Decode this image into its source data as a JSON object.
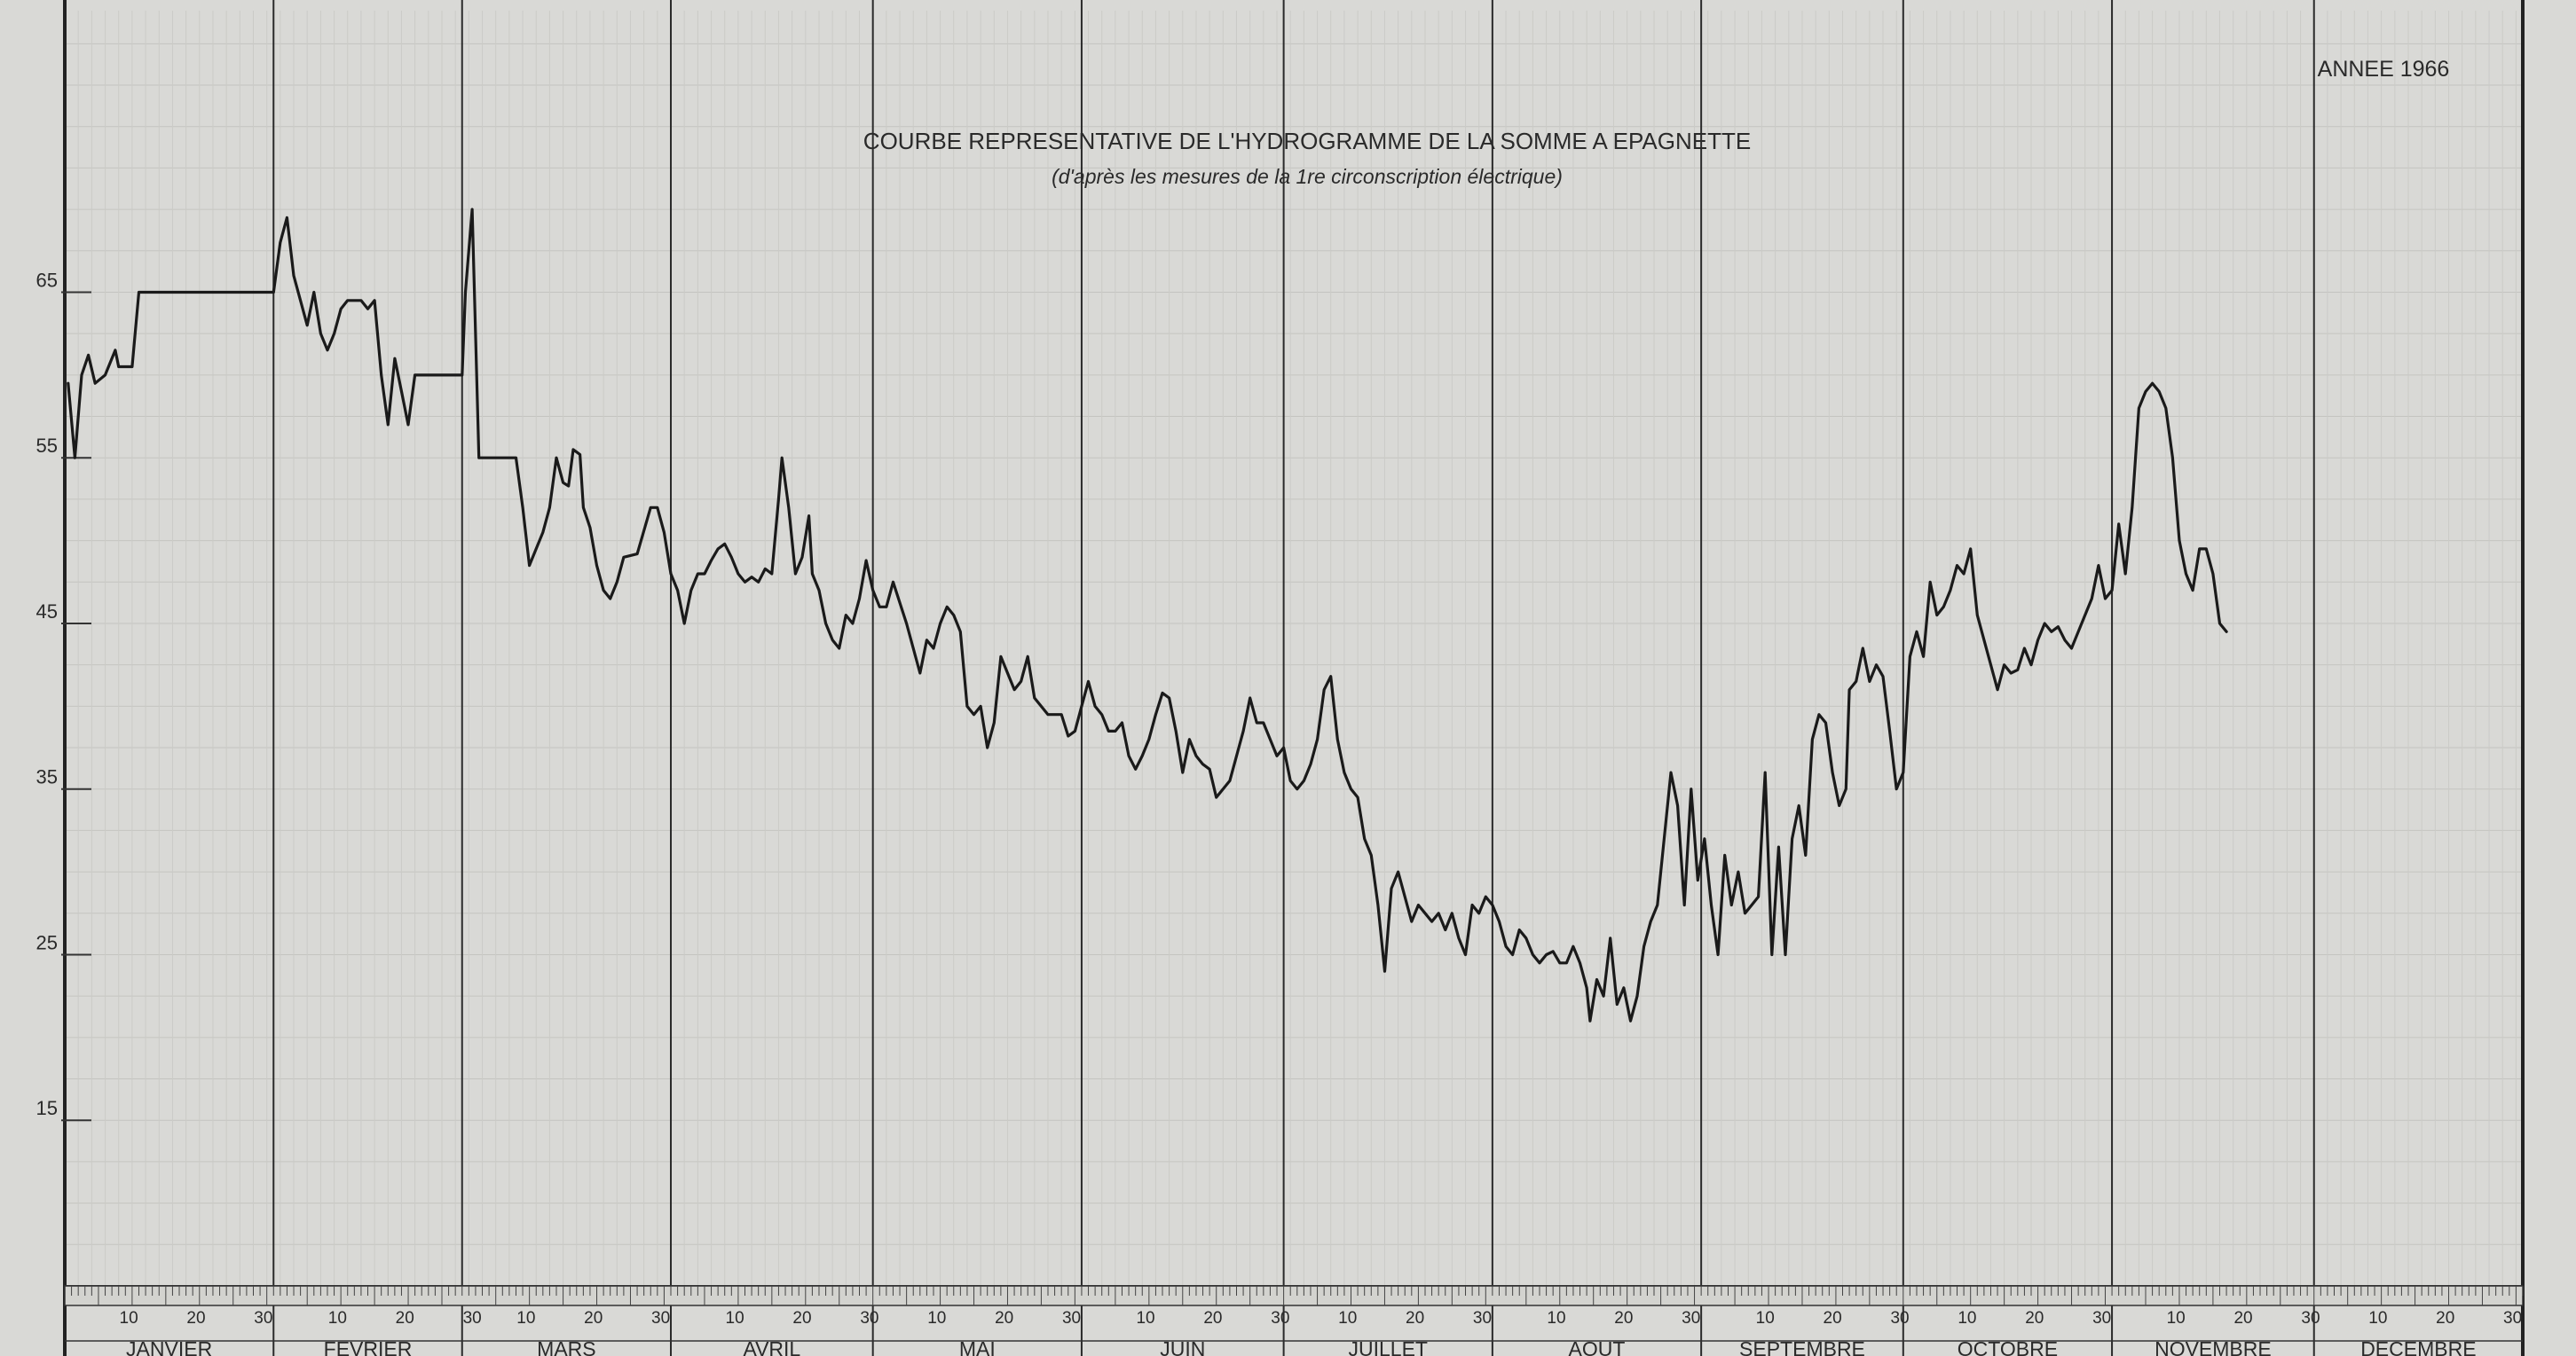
{
  "chart_data": {
    "type": "line",
    "title": "COURBE REPRESENTATIVE DE L'HYDROGRAMME DE LA SOMME A EPAGNETTE",
    "subtitle": "(d'après les mesures de la 1re circonscription électrique)",
    "annotation": "ANNEE 1966",
    "xlabel": "",
    "ylabel": "",
    "ylim": [
      5,
      82
    ],
    "xlim": [
      0,
      365
    ],
    "y_ticks": [
      15,
      25,
      35,
      45,
      55,
      65
    ],
    "grid": true,
    "months": [
      {
        "name": "JANVIER",
        "days": 31
      },
      {
        "name": "FEVRIER",
        "days": 28
      },
      {
        "name": "MARS",
        "days": 31
      },
      {
        "name": "AVRIL",
        "days": 30
      },
      {
        "name": "MAI",
        "days": 31
      },
      {
        "name": "JUIN",
        "days": 30
      },
      {
        "name": "JUILLET",
        "days": 31
      },
      {
        "name": "AOUT",
        "days": 31
      },
      {
        "name": "SEPTEMBRE",
        "days": 30
      },
      {
        "name": "OCTOBRE",
        "days": 31
      },
      {
        "name": "NOVEMBRE",
        "days": 30
      },
      {
        "name": "DECEMBRE",
        "days": 31
      }
    ],
    "day_ticks": [
      "10",
      "20",
      "30"
    ],
    "series": [
      {
        "values": [
          [
            0.5,
            59.5
          ],
          [
            1.5,
            55
          ],
          [
            2.5,
            60
          ],
          [
            3.5,
            61.2
          ],
          [
            4.5,
            59.5
          ],
          [
            6,
            60
          ],
          [
            7.5,
            61.5
          ],
          [
            8,
            60.5
          ],
          [
            10,
            60.5
          ],
          [
            11,
            65
          ],
          [
            13,
            65
          ],
          [
            16,
            65
          ],
          [
            20,
            65
          ],
          [
            25,
            65
          ],
          [
            31,
            65
          ],
          [
            32,
            68
          ],
          [
            33,
            69.5
          ],
          [
            34,
            66
          ],
          [
            35,
            64.5
          ],
          [
            36,
            63
          ],
          [
            37,
            65
          ],
          [
            38,
            62.5
          ],
          [
            39,
            61.5
          ],
          [
            40,
            62.5
          ],
          [
            41,
            64
          ],
          [
            42,
            64.5
          ],
          [
            44,
            64.5
          ],
          [
            45,
            64
          ],
          [
            46,
            64.5
          ],
          [
            47,
            60
          ],
          [
            48,
            57
          ],
          [
            49,
            61
          ],
          [
            50,
            59
          ],
          [
            51,
            57
          ],
          [
            52,
            60
          ],
          [
            53,
            60
          ],
          [
            59,
            60
          ],
          [
            59.5,
            65
          ],
          [
            60.5,
            70
          ],
          [
            61.5,
            55
          ],
          [
            63,
            55
          ],
          [
            67,
            55
          ],
          [
            68,
            52
          ],
          [
            69,
            48.5
          ],
          [
            70,
            49.5
          ],
          [
            71,
            50.5
          ],
          [
            72,
            52
          ],
          [
            73,
            55
          ],
          [
            74,
            53.5
          ],
          [
            74.8,
            53.3
          ],
          [
            75.5,
            55.5
          ],
          [
            76.5,
            55.2
          ],
          [
            77,
            52
          ],
          [
            78,
            50.8
          ],
          [
            79,
            48.5
          ],
          [
            80,
            47
          ],
          [
            81,
            46.5
          ],
          [
            82,
            47.5
          ],
          [
            83,
            49
          ],
          [
            85,
            49.2
          ],
          [
            87,
            52
          ],
          [
            88,
            52
          ],
          [
            89,
            50.5
          ],
          [
            90,
            48
          ],
          [
            91,
            47
          ],
          [
            92,
            45
          ],
          [
            93,
            47
          ],
          [
            94,
            48
          ],
          [
            95,
            48
          ],
          [
            96,
            48.8
          ],
          [
            97,
            49.5
          ],
          [
            98,
            49.8
          ],
          [
            99,
            49
          ],
          [
            100,
            48
          ],
          [
            101,
            47.5
          ],
          [
            102,
            47.8
          ],
          [
            103,
            47.5
          ],
          [
            104,
            48.3
          ],
          [
            105,
            48
          ],
          [
            106,
            52.5
          ],
          [
            106.5,
            55
          ],
          [
            107.5,
            52
          ],
          [
            108.5,
            48
          ],
          [
            109.5,
            49
          ],
          [
            110.5,
            51.5
          ],
          [
            111,
            48
          ],
          [
            112,
            47
          ],
          [
            113,
            45
          ],
          [
            114,
            44
          ],
          [
            115,
            43.5
          ],
          [
            116,
            45.5
          ],
          [
            117,
            45
          ],
          [
            118,
            46.5
          ],
          [
            119,
            48.8
          ],
          [
            120,
            47
          ],
          [
            121,
            46
          ],
          [
            122,
            46
          ],
          [
            123,
            47.5
          ],
          [
            125,
            45
          ],
          [
            126,
            43.5
          ],
          [
            127,
            42
          ],
          [
            128,
            44
          ],
          [
            129,
            43.5
          ],
          [
            130,
            45
          ],
          [
            131,
            46
          ],
          [
            132,
            45.5
          ],
          [
            133,
            44.5
          ],
          [
            134,
            40
          ],
          [
            135,
            39.5
          ],
          [
            136,
            40
          ],
          [
            137,
            37.5
          ],
          [
            138,
            39
          ],
          [
            139,
            43
          ],
          [
            140,
            42
          ],
          [
            141,
            41
          ],
          [
            142,
            41.5
          ],
          [
            143,
            43
          ],
          [
            144,
            40.5
          ],
          [
            145,
            40
          ],
          [
            146,
            39.5
          ],
          [
            148,
            39.5
          ],
          [
            149,
            38.2
          ],
          [
            150,
            38.5
          ],
          [
            151,
            40
          ],
          [
            152,
            41.5
          ],
          [
            153,
            40
          ],
          [
            154,
            39.5
          ],
          [
            155,
            38.5
          ],
          [
            156,
            38.5
          ],
          [
            157,
            39
          ],
          [
            158,
            37
          ],
          [
            159,
            36.2
          ],
          [
            160,
            37
          ],
          [
            161,
            38
          ],
          [
            162,
            39.5
          ],
          [
            163,
            40.8
          ],
          [
            164,
            40.5
          ],
          [
            165,
            38.5
          ],
          [
            166,
            36
          ],
          [
            167,
            38
          ],
          [
            168,
            37
          ],
          [
            169,
            36.5
          ],
          [
            170,
            36.2
          ],
          [
            171,
            34.5
          ],
          [
            172,
            35
          ],
          [
            173,
            35.5
          ],
          [
            174,
            37
          ],
          [
            175,
            38.5
          ],
          [
            176,
            40.5
          ],
          [
            177,
            39
          ],
          [
            178,
            39
          ],
          [
            179,
            38
          ],
          [
            180,
            37
          ],
          [
            181,
            37.5
          ],
          [
            182,
            35.5
          ],
          [
            183,
            35
          ],
          [
            184,
            35.5
          ],
          [
            185,
            36.5
          ],
          [
            186,
            38
          ],
          [
            187,
            41
          ],
          [
            188,
            41.8
          ],
          [
            189,
            38
          ],
          [
            190,
            36
          ],
          [
            191,
            35
          ],
          [
            192,
            34.5
          ],
          [
            193,
            32
          ],
          [
            194,
            31
          ],
          [
            195,
            28
          ],
          [
            196,
            24
          ],
          [
            197,
            29
          ],
          [
            198,
            30
          ],
          [
            199,
            28.5
          ],
          [
            200,
            27
          ],
          [
            201,
            28
          ],
          [
            202,
            27.5
          ],
          [
            203,
            27
          ],
          [
            204,
            27.5
          ],
          [
            205,
            26.5
          ],
          [
            206,
            27.5
          ],
          [
            207,
            26
          ],
          [
            208,
            25
          ],
          [
            209,
            28
          ],
          [
            210,
            27.5
          ],
          [
            211,
            28.5
          ],
          [
            212,
            28
          ],
          [
            213,
            27
          ],
          [
            214,
            25.5
          ],
          [
            215,
            25
          ],
          [
            216,
            26.5
          ],
          [
            217,
            26
          ],
          [
            218,
            25
          ],
          [
            219,
            24.5
          ],
          [
            220,
            25
          ],
          [
            221,
            25.2
          ],
          [
            222,
            24.5
          ],
          [
            223,
            24.5
          ],
          [
            224,
            25.5
          ],
          [
            225,
            24.5
          ],
          [
            226,
            23
          ],
          [
            226.5,
            21
          ],
          [
            227.5,
            23.5
          ],
          [
            228.5,
            22.5
          ],
          [
            229.5,
            26
          ],
          [
            230.5,
            22
          ],
          [
            231.5,
            23
          ],
          [
            232.5,
            21
          ],
          [
            233.5,
            22.5
          ],
          [
            234.5,
            25.5
          ],
          [
            235.5,
            27
          ],
          [
            236.5,
            28
          ],
          [
            237.5,
            32
          ],
          [
            238.5,
            36
          ],
          [
            239.5,
            34
          ],
          [
            240.5,
            28
          ],
          [
            241.5,
            35
          ],
          [
            242.5,
            29.5
          ],
          [
            243.5,
            32
          ],
          [
            244.5,
            28
          ],
          [
            245.5,
            25
          ],
          [
            246.5,
            31
          ],
          [
            247.5,
            28
          ],
          [
            248.5,
            30
          ],
          [
            249.5,
            27.5
          ],
          [
            250.5,
            28
          ],
          [
            251.5,
            28.5
          ],
          [
            252.5,
            36
          ],
          [
            253.5,
            25
          ],
          [
            254.5,
            31.5
          ],
          [
            255.5,
            25
          ],
          [
            256.5,
            32
          ],
          [
            257.5,
            34
          ],
          [
            258.5,
            31
          ],
          [
            259.5,
            38
          ],
          [
            260.5,
            39.5
          ],
          [
            261.5,
            39
          ],
          [
            262.5,
            36
          ],
          [
            263.5,
            34
          ],
          [
            264.5,
            35
          ],
          [
            265,
            41
          ],
          [
            266,
            41.5
          ],
          [
            267,
            43.5
          ],
          [
            268,
            41.5
          ],
          [
            269,
            42.5
          ],
          [
            270,
            41.8
          ],
          [
            271,
            38.5
          ],
          [
            272,
            35
          ],
          [
            273,
            36
          ],
          [
            274,
            43
          ],
          [
            275,
            44.5
          ],
          [
            276,
            43
          ],
          [
            277,
            47.5
          ],
          [
            278,
            45.5
          ],
          [
            279,
            46
          ],
          [
            280,
            47
          ],
          [
            281,
            48.5
          ],
          [
            282,
            48
          ],
          [
            283,
            49.5
          ],
          [
            284,
            45.5
          ],
          [
            285,
            44
          ],
          [
            286,
            42.5
          ],
          [
            287,
            41
          ],
          [
            288,
            42.5
          ],
          [
            289,
            42
          ],
          [
            290,
            42.2
          ],
          [
            291,
            43.5
          ],
          [
            292,
            42.5
          ],
          [
            293,
            44
          ],
          [
            294,
            45
          ],
          [
            295,
            44.5
          ],
          [
            296,
            44.8
          ],
          [
            297,
            44
          ],
          [
            298,
            43.5
          ],
          [
            299,
            44.5
          ],
          [
            300,
            45.5
          ],
          [
            301,
            46.5
          ],
          [
            302,
            48.5
          ],
          [
            303,
            46.5
          ],
          [
            304,
            47
          ],
          [
            305,
            51
          ],
          [
            306,
            48
          ],
          [
            307,
            52
          ],
          [
            308,
            58
          ],
          [
            309,
            59
          ],
          [
            310,
            59.5
          ],
          [
            311,
            59
          ],
          [
            312,
            58
          ],
          [
            313,
            55
          ],
          [
            314,
            50
          ],
          [
            315,
            48
          ],
          [
            316,
            47
          ],
          [
            317,
            49.5
          ],
          [
            318,
            49.5
          ],
          [
            319,
            48
          ],
          [
            320,
            45
          ],
          [
            321,
            44.5
          ]
        ]
      }
    ]
  }
}
